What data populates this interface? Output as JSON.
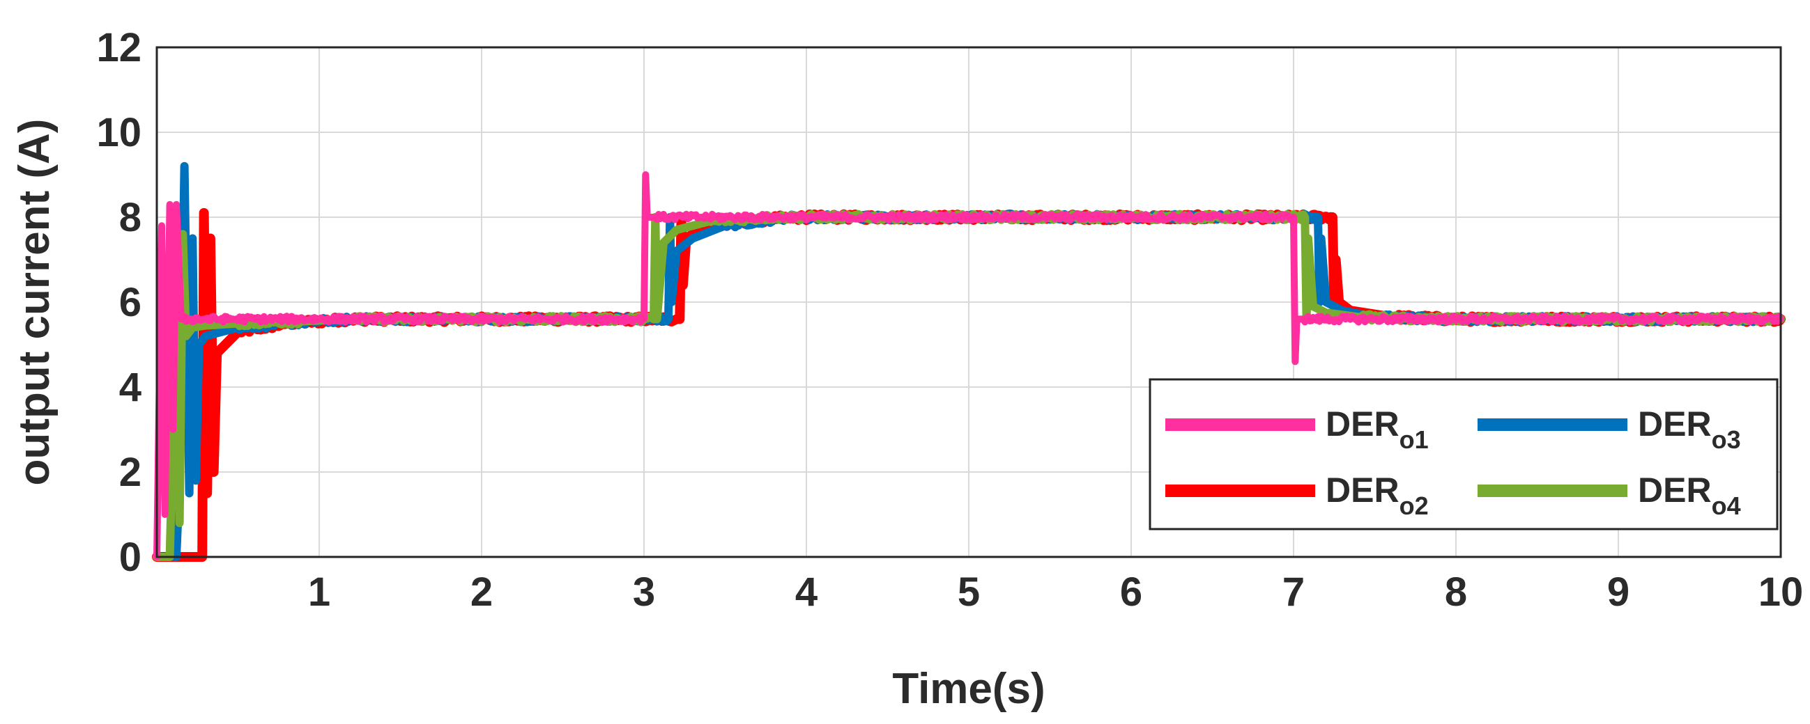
{
  "chart_data": {
    "type": "line",
    "title": "",
    "xlabel": "Time(s)",
    "ylabel": "output current (A)",
    "xlim": [
      0,
      10
    ],
    "ylim": [
      0,
      12
    ],
    "xticks": [
      1,
      2,
      3,
      4,
      5,
      6,
      7,
      8,
      9,
      10
    ],
    "xtick_labels": [
      "1",
      "2",
      "3",
      "4",
      "5",
      "6",
      "7",
      "8",
      "9",
      "10"
    ],
    "yticks": [
      0,
      2,
      4,
      6,
      8,
      10,
      12
    ],
    "ytick_labels": [
      "0",
      "2",
      "4",
      "6",
      "8",
      "10",
      "12"
    ],
    "grid": true,
    "legend_position": "bottom-right",
    "series": [
      {
        "name": "DER",
        "subscript": "o1",
        "color": "#ff2fa0",
        "x": [
          0,
          0.03,
          0.05,
          0.08,
          0.1,
          0.12,
          0.15,
          3.0,
          3.01,
          3.02,
          3.06,
          7.0,
          7.01,
          7.02,
          7.06,
          10
        ],
        "y": [
          0,
          7.8,
          1.0,
          8.3,
          3.0,
          8.3,
          5.6,
          5.6,
          9.0,
          8.0,
          8.0,
          8.0,
          4.6,
          5.6,
          5.6,
          5.6
        ]
      },
      {
        "name": "DER",
        "subscript": "o2",
        "color": "#ff0000",
        "x": [
          0,
          0.28,
          0.29,
          0.31,
          0.33,
          0.35,
          0.37,
          0.5,
          0.8,
          1.2,
          3.22,
          3.23,
          3.24,
          3.26,
          3.3,
          3.5,
          3.9,
          4.5,
          7.24,
          7.25,
          7.26,
          7.28,
          7.35,
          7.6,
          8.0,
          10
        ],
        "y": [
          0,
          0,
          8.1,
          1.5,
          7.5,
          2.0,
          4.8,
          5.3,
          5.5,
          5.6,
          5.6,
          8.0,
          6.4,
          7.5,
          7.6,
          7.85,
          8.0,
          8.0,
          8.0,
          6.0,
          7.0,
          6.0,
          5.8,
          5.65,
          5.6,
          5.6
        ],
        "width": 14
      },
      {
        "name": "DER",
        "subscript": "o3",
        "color": "#0072bd",
        "x": [
          0,
          0.12,
          0.14,
          0.17,
          0.2,
          0.22,
          0.24,
          0.26,
          0.3,
          0.5,
          0.8,
          1.2,
          3.15,
          3.16,
          3.17,
          3.2,
          3.3,
          3.5,
          3.9,
          4.5,
          7.15,
          7.16,
          7.17,
          7.2,
          7.3,
          7.5,
          8.0,
          10
        ],
        "y": [
          0,
          0,
          1.8,
          9.2,
          1.5,
          7.5,
          1.8,
          5.0,
          5.2,
          5.4,
          5.5,
          5.6,
          5.6,
          8.0,
          6.0,
          7.2,
          7.5,
          7.8,
          8.0,
          8.0,
          8.0,
          6.0,
          7.5,
          6.0,
          5.8,
          5.65,
          5.6,
          5.6
        ],
        "width": 12
      },
      {
        "name": "DER",
        "subscript": "o4",
        "color": "#77ac30",
        "x": [
          0,
          0.08,
          0.1,
          0.12,
          0.14,
          0.16,
          0.18,
          0.22,
          0.3,
          0.5,
          0.9,
          1.2,
          3.06,
          3.07,
          3.08,
          3.12,
          3.2,
          3.4,
          3.8,
          4.5,
          7.07,
          7.08,
          7.09,
          7.12,
          7.2,
          7.4,
          7.8,
          10
        ],
        "y": [
          0,
          0,
          3.0,
          7.9,
          0.8,
          7.6,
          5.2,
          5.4,
          5.45,
          5.5,
          5.55,
          5.6,
          5.6,
          8.0,
          5.6,
          7.4,
          7.7,
          7.9,
          8.0,
          8.0,
          8.0,
          5.6,
          7.5,
          5.9,
          5.75,
          5.65,
          5.6,
          5.6
        ],
        "width": 12
      }
    ]
  }
}
